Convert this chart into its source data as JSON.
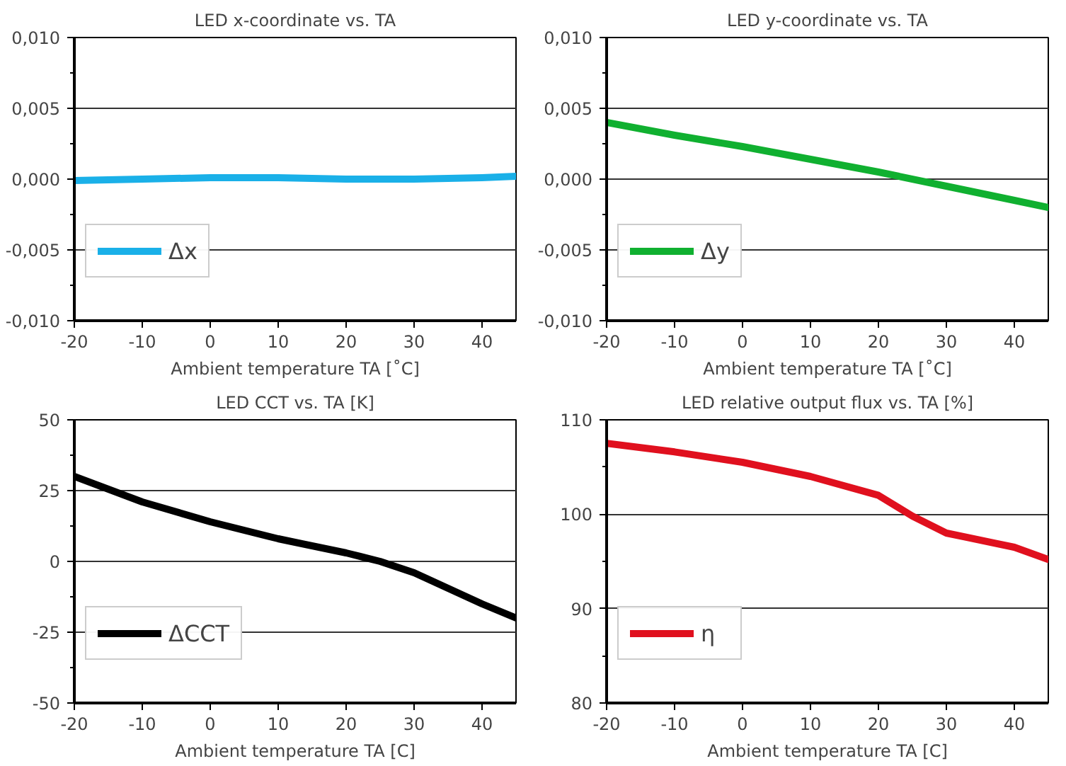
{
  "chart_data": [
    {
      "type": "line",
      "title": "LED x-coordinate vs. TA",
      "xlabel": "Ambient temperature TA [˚C]",
      "x": [
        -20,
        -10,
        0,
        10,
        20,
        25,
        30,
        40,
        45
      ],
      "series": [
        {
          "name": "Δx",
          "color": "#1ab0e8",
          "values": [
            -0.0001,
            0.0,
            0.0001,
            0.0001,
            0.0,
            0.0,
            0.0,
            0.0001,
            0.0002
          ]
        }
      ],
      "xlim": [
        -20,
        45
      ],
      "xticks": [
        -20,
        -10,
        0,
        10,
        20,
        30,
        40
      ],
      "ylim": [
        -0.01,
        0.01
      ],
      "yticks": [
        {
          "value": -0.01,
          "label": "-0,010"
        },
        {
          "value": -0.005,
          "label": "-0,005"
        },
        {
          "value": 0,
          "label": "0,000"
        },
        {
          "value": 0.005,
          "label": "0,005"
        },
        {
          "value": 0.01,
          "label": "0,010"
        }
      ],
      "grid": "y",
      "legend": "left",
      "marker": "none",
      "line_style": "solid"
    },
    {
      "type": "line",
      "title": "LED y-coordinate vs. TA",
      "xlabel": "Ambient temperature TA [˚C]",
      "x": [
        -20,
        -10,
        0,
        10,
        20,
        30,
        40,
        45
      ],
      "series": [
        {
          "name": "Δy",
          "color": "#10b030",
          "values": [
            0.004,
            0.0031,
            0.0023,
            0.0014,
            0.0005,
            -0.0005,
            -0.0015,
            -0.002
          ]
        }
      ],
      "xlim": [
        -20,
        45
      ],
      "xticks": [
        -20,
        -10,
        0,
        10,
        20,
        30,
        40
      ],
      "ylim": [
        -0.01,
        0.01
      ],
      "yticks": [
        {
          "value": -0.01,
          "label": "-0,010"
        },
        {
          "value": -0.005,
          "label": "-0,005"
        },
        {
          "value": 0,
          "label": "0,000"
        },
        {
          "value": 0.005,
          "label": "0,005"
        },
        {
          "value": 0.01,
          "label": "0,010"
        }
      ],
      "grid": "y",
      "legend": "left",
      "marker": "none",
      "line_style": "solid"
    },
    {
      "type": "line",
      "title": "LED CCT vs. TA [K]",
      "xlabel": "Ambient temperature TA [C]",
      "x": [
        -20,
        -10,
        0,
        10,
        20,
        25,
        30,
        40,
        45
      ],
      "series": [
        {
          "name": "ΔCCT",
          "color": "#000000",
          "values": [
            30,
            21,
            14,
            8,
            3,
            0,
            -4,
            -15,
            -20
          ]
        }
      ],
      "xlim": [
        -20,
        45
      ],
      "xticks": [
        -20,
        -10,
        0,
        10,
        20,
        30,
        40
      ],
      "ylim": [
        -50,
        50
      ],
      "yticks": [
        -50,
        -25,
        0,
        25,
        50
      ],
      "grid": "y",
      "legend": "left",
      "marker": "none",
      "line_style": "solid"
    },
    {
      "type": "line",
      "title": "LED relative output flux vs. TA [%]",
      "xlabel": "Ambient temperature TA [C]",
      "x": [
        -20,
        -10,
        0,
        10,
        20,
        25,
        30,
        40,
        45
      ],
      "series": [
        {
          "name": "η",
          "color": "#e0101e",
          "values": [
            107.5,
            106.6,
            105.5,
            104,
            102,
            99.8,
            98,
            96.5,
            95.2
          ]
        }
      ],
      "xlim": [
        -20,
        45
      ],
      "xticks": [
        -20,
        -10,
        0,
        10,
        20,
        30,
        40
      ],
      "ylim": [
        80,
        110
      ],
      "yticks": [
        80,
        90,
        100,
        110
      ],
      "grid": "y",
      "legend": "left",
      "marker": "none",
      "line_style": "solid"
    }
  ]
}
